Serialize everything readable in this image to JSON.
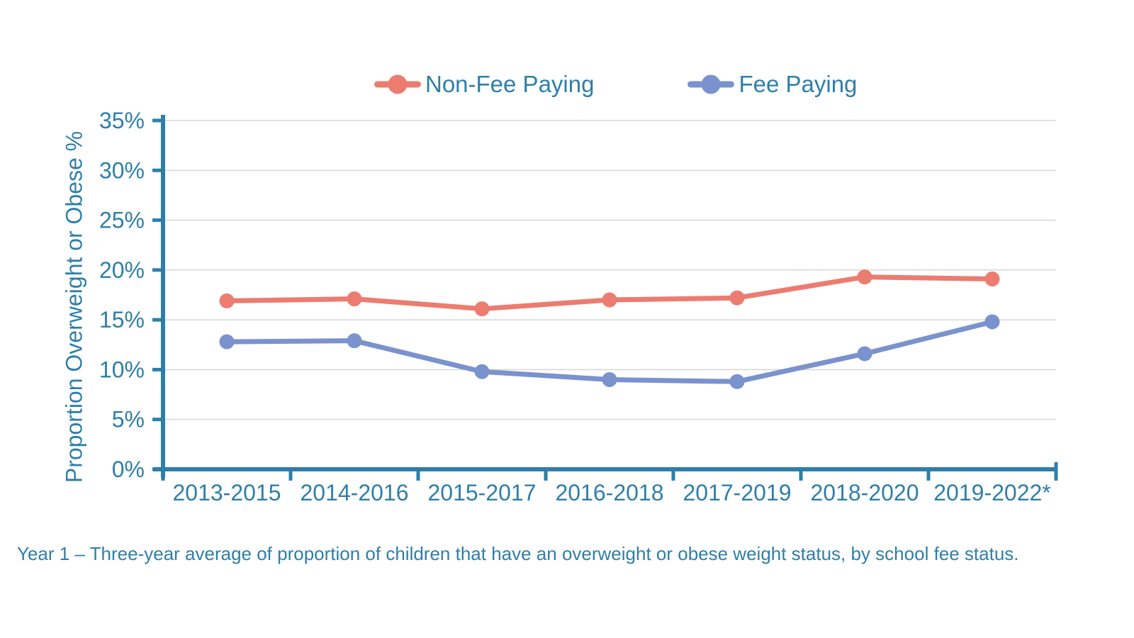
{
  "legend": {
    "items": [
      {
        "label": "Non-Fee Paying",
        "color": "#EC7C70"
      },
      {
        "label": "Fee Paying",
        "color": "#7A92CD"
      }
    ]
  },
  "chart_data": {
    "type": "line",
    "title": "",
    "xlabel": "",
    "ylabel": "Proportion Overweight or Obese %",
    "categories": [
      "2013-2015",
      "2014-2016",
      "2015-2017",
      "2016-2018",
      "2017-2019",
      "2018-2020",
      "2019-2022*"
    ],
    "series": [
      {
        "name": "Non-Fee Paying",
        "color": "#EC7C70",
        "values": [
          16.9,
          17.1,
          16.1,
          17.0,
          17.2,
          19.3,
          19.1
        ]
      },
      {
        "name": "Fee Paying",
        "color": "#7A92CD",
        "values": [
          12.8,
          12.9,
          9.8,
          9.0,
          8.8,
          11.6,
          14.8
        ]
      }
    ],
    "ylim": [
      0,
      35
    ],
    "y_tick_values": [
      0,
      5,
      10,
      15,
      20,
      25,
      30,
      35
    ],
    "y_tick_labels": [
      "0%",
      "5%",
      "10%",
      "15%",
      "20%",
      "25%",
      "30%",
      "35%"
    ],
    "grid": true,
    "legend_position": "top",
    "axis_color": "#2E7FA8",
    "grid_color": "#D9D9D9",
    "tick_label_color": "#2E7FA8"
  },
  "caption": "Year 1 – Three-year average of proportion of children that have an overweight or obese weight status, by school fee status."
}
